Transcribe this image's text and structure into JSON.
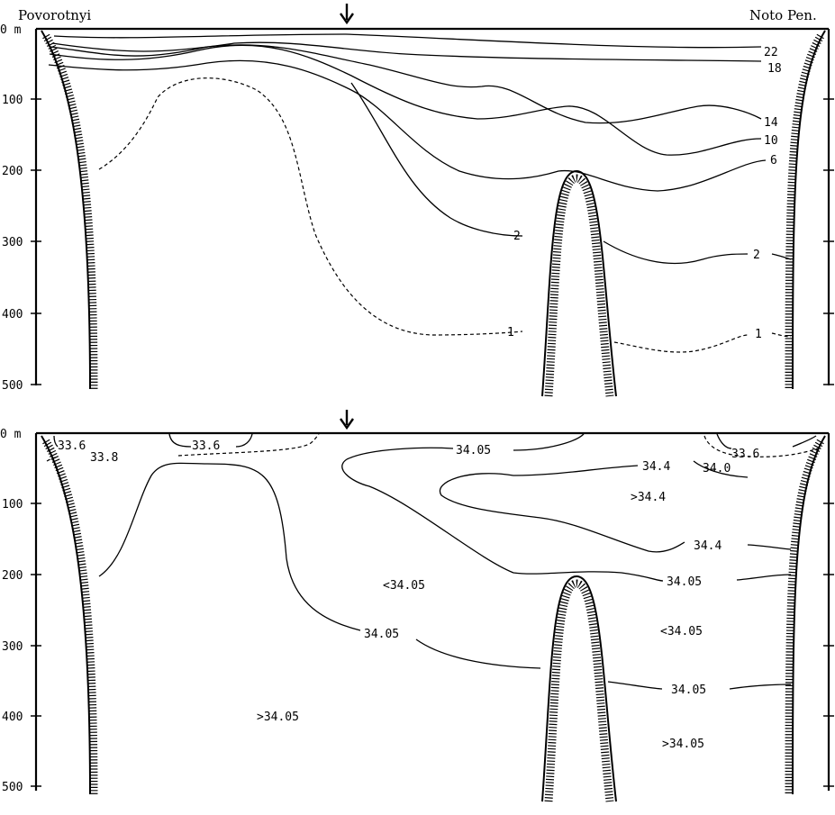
{
  "left_station": "Povorotnyi",
  "right_station": "Noto Pen.",
  "depth_ticks": [
    "0 m",
    "100",
    "200",
    "300",
    "400",
    "500"
  ],
  "chart_data": [
    {
      "type": "contour",
      "variable": "temperature",
      "ylim": [
        500,
        0
      ],
      "y_ticks": [
        0,
        100,
        200,
        300,
        400,
        500
      ],
      "contour_levels": [
        22,
        18,
        14,
        10,
        6,
        2,
        1
      ],
      "labels": [
        {
          "text": "22",
          "level": 22,
          "depth": 38
        },
        {
          "text": "18",
          "level": 18,
          "depth": 57
        },
        {
          "text": "14",
          "level": 14,
          "depth": 130
        },
        {
          "text": "10",
          "level": 10,
          "depth": 153
        },
        {
          "text": "6",
          "level": 6,
          "depth": 180
        },
        {
          "text": "2",
          "level": 2,
          "depth": 290
        },
        {
          "text": "2",
          "level": 2,
          "depth": 292
        },
        {
          "text": "1",
          "level": 1,
          "depth": 380
        },
        {
          "text": "1",
          "level": 1,
          "depth": 370
        }
      ]
    },
    {
      "type": "contour",
      "variable": "salinity",
      "ylim": [
        500,
        0
      ],
      "y_ticks": [
        0,
        100,
        200,
        300,
        400,
        500
      ],
      "contour_levels": [
        33.6,
        33.8,
        34.0,
        34.05,
        34.4
      ],
      "labels": [
        {
          "text": "33.6",
          "level": 33.6
        },
        {
          "text": "33.6",
          "level": 33.6
        },
        {
          "text": "33.8",
          "level": 33.8
        },
        {
          "text": "34.05",
          "level": 34.05
        },
        {
          "text": "34.4",
          "level": 34.4
        },
        {
          "text": "33.6",
          "level": 33.6
        },
        {
          "text": "34.0",
          "level": 34.0
        },
        {
          "text": ">34.4",
          "level": 34.4
        },
        {
          "text": "34.4",
          "level": 34.4
        },
        {
          "text": "<34.05",
          "level": 34.05
        },
        {
          "text": "34.05",
          "level": 34.05
        },
        {
          "text": "34.05",
          "level": 34.05
        },
        {
          "text": "<34.05",
          "level": 34.05
        },
        {
          "text": "34.05",
          "level": 34.05
        },
        {
          "text": ">34.05",
          "level": 34.05
        },
        {
          "text": ">34.05",
          "level": 34.05
        }
      ]
    }
  ]
}
